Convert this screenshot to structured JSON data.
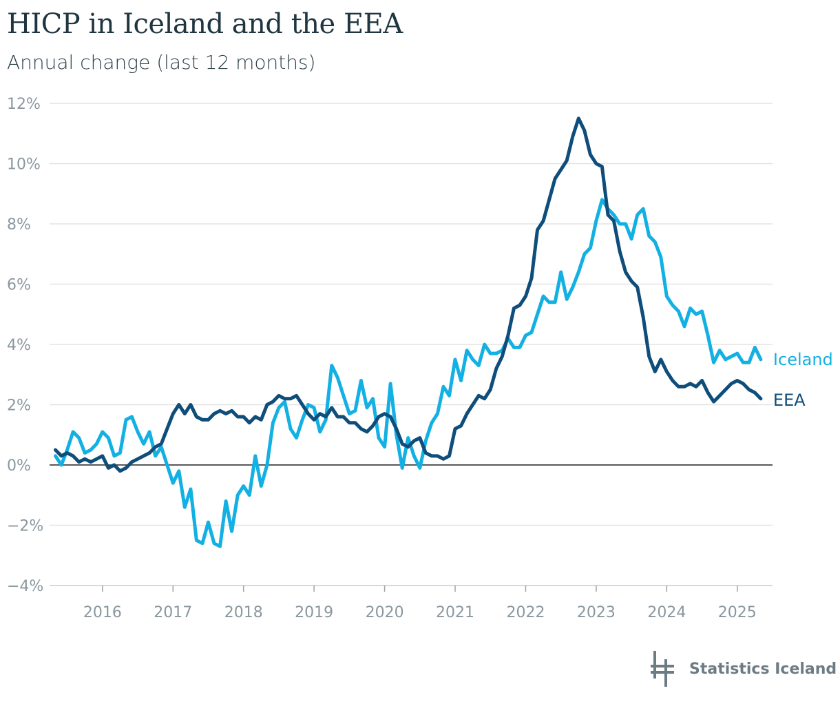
{
  "title": "HICP in Iceland and the EEA",
  "subtitle": "Annual change (last 12 months)",
  "brand": {
    "name": "Statistics Iceland",
    "logo_icon": "statistics-iceland-logo-icon"
  },
  "colors": {
    "iceland": "#13b0e3",
    "eea": "#0f4d7a",
    "zero_line": "#222222",
    "grid": "#e3e3e3",
    "tick_text": "#8a979e"
  },
  "chart_data": {
    "type": "line",
    "title": "HICP in Iceland and the EEA",
    "subtitle": "Annual change (last 12 months)",
    "y_ticks": [
      "12%",
      "10%",
      "8%",
      "6%",
      "4%",
      "2%",
      "0%",
      "−2%",
      "−4%"
    ],
    "x_ticks": [
      "2016",
      "2017",
      "2018",
      "2019",
      "2020",
      "2021",
      "2022",
      "2023",
      "2024",
      "2025"
    ],
    "ylim": [
      -4,
      12
    ],
    "xlim": [
      "2015-04",
      "2025-07"
    ],
    "x_start": "2015-05",
    "x_step": "month",
    "grid": true,
    "legend": "inline labels at line ends",
    "series": [
      {
        "name": "Iceland",
        "color": "#13b0e3",
        "values": [
          0.3,
          0.0,
          0.5,
          1.1,
          0.9,
          0.4,
          0.5,
          0.7,
          1.1,
          0.9,
          0.3,
          0.4,
          1.5,
          1.6,
          1.1,
          0.7,
          1.1,
          0.3,
          0.6,
          0.0,
          -0.6,
          -0.2,
          -1.4,
          -0.8,
          -2.5,
          -2.6,
          -1.9,
          -2.6,
          -2.7,
          -1.2,
          -2.2,
          -1.0,
          -0.7,
          -1.0,
          0.3,
          -0.7,
          0.0,
          1.4,
          1.9,
          2.1,
          1.2,
          0.9,
          1.5,
          2.0,
          1.9,
          1.1,
          1.5,
          3.3,
          2.9,
          2.3,
          1.7,
          1.8,
          2.8,
          1.9,
          2.2,
          0.9,
          0.6,
          2.7,
          1.0,
          -0.1,
          0.9,
          0.3,
          -0.1,
          0.8,
          1.4,
          1.7,
          2.6,
          2.3,
          3.5,
          2.8,
          3.8,
          3.5,
          3.3,
          4.0,
          3.7,
          3.7,
          3.8,
          4.2,
          3.9,
          3.9,
          4.3,
          4.4,
          5.0,
          5.6,
          5.4,
          5.4,
          6.4,
          5.5,
          5.9,
          6.4,
          7.0,
          7.2,
          8.1,
          8.8,
          8.5,
          8.3,
          8.0,
          8.0,
          7.5,
          8.3,
          8.5,
          7.6,
          7.4,
          6.9,
          5.6,
          5.3,
          5.1,
          4.6,
          5.2,
          5.0,
          5.1,
          4.3,
          3.4,
          3.8,
          3.5,
          3.6,
          3.7,
          3.4,
          3.4,
          3.9,
          3.5
        ]
      },
      {
        "name": "EEA",
        "color": "#0f4d7a",
        "values": [
          0.5,
          0.3,
          0.4,
          0.3,
          0.1,
          0.2,
          0.1,
          0.2,
          0.3,
          -0.1,
          0.0,
          -0.2,
          -0.1,
          0.1,
          0.2,
          0.3,
          0.4,
          0.6,
          0.7,
          1.2,
          1.7,
          2.0,
          1.7,
          2.0,
          1.6,
          1.5,
          1.5,
          1.7,
          1.8,
          1.7,
          1.8,
          1.6,
          1.6,
          1.4,
          1.6,
          1.5,
          2.0,
          2.1,
          2.3,
          2.2,
          2.2,
          2.3,
          2.0,
          1.7,
          1.5,
          1.7,
          1.6,
          1.9,
          1.6,
          1.6,
          1.4,
          1.4,
          1.2,
          1.1,
          1.3,
          1.6,
          1.7,
          1.6,
          1.2,
          0.7,
          0.6,
          0.8,
          0.9,
          0.4,
          0.3,
          0.3,
          0.2,
          0.3,
          1.2,
          1.3,
          1.7,
          2.0,
          2.3,
          2.2,
          2.5,
          3.2,
          3.6,
          4.3,
          5.2,
          5.3,
          5.6,
          6.2,
          7.8,
          8.1,
          8.8,
          9.5,
          9.8,
          10.1,
          10.9,
          11.5,
          11.1,
          10.3,
          10.0,
          9.9,
          8.3,
          8.1,
          7.1,
          6.4,
          6.1,
          5.9,
          4.9,
          3.6,
          3.1,
          3.5,
          3.1,
          2.8,
          2.6,
          2.6,
          2.7,
          2.6,
          2.8,
          2.4,
          2.1,
          2.3,
          2.5,
          2.7,
          2.8,
          2.7,
          2.5,
          2.4,
          2.2
        ]
      }
    ]
  }
}
